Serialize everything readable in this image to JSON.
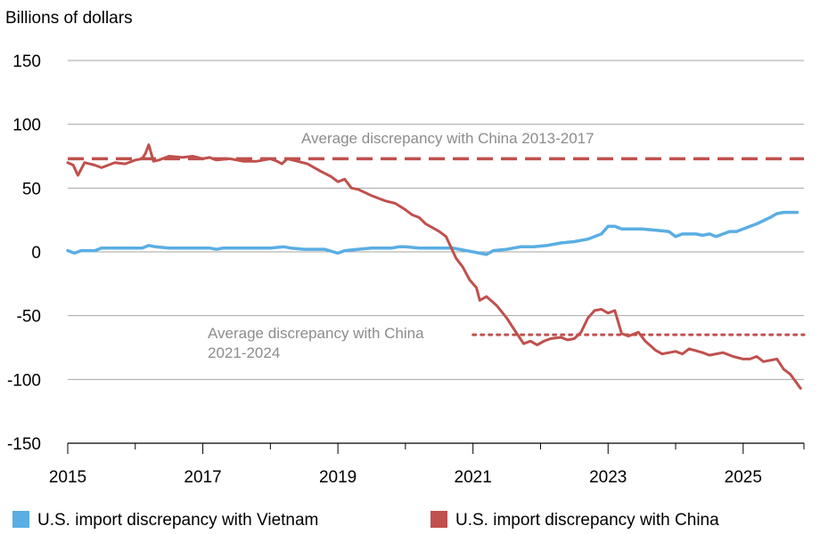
{
  "chart_data": {
    "type": "line",
    "ylabel": "Billions of dollars",
    "ylim": [
      -150,
      150
    ],
    "yticks": [
      150,
      100,
      50,
      0,
      -50,
      -100,
      -150
    ],
    "ytick_labels": [
      "150",
      "100",
      "50",
      "0",
      "-50",
      "-100",
      "-150"
    ],
    "xlim": [
      2015,
      2025.9
    ],
    "xticks": [
      2015,
      2017,
      2019,
      2021,
      2023,
      2025
    ],
    "xtick_labels": [
      "2015",
      "2017",
      "2019",
      "2021",
      "2023",
      "2025"
    ],
    "grid": "horizontal",
    "legend_position": "bottom",
    "series": [
      {
        "name": "U.S. import discrepancy with Vietnam",
        "color": "#5aaee3",
        "points": [
          [
            2015.0,
            1
          ],
          [
            2015.1,
            -1
          ],
          [
            2015.2,
            1
          ],
          [
            2015.4,
            1
          ],
          [
            2015.5,
            3
          ],
          [
            2015.8,
            3
          ],
          [
            2016.0,
            3
          ],
          [
            2016.1,
            3
          ],
          [
            2016.2,
            5
          ],
          [
            2016.3,
            4
          ],
          [
            2016.5,
            3
          ],
          [
            2016.8,
            3
          ],
          [
            2017.0,
            3
          ],
          [
            2017.1,
            3
          ],
          [
            2017.2,
            2
          ],
          [
            2017.3,
            3
          ],
          [
            2017.5,
            3
          ],
          [
            2017.8,
            3
          ],
          [
            2018.0,
            3
          ],
          [
            2018.2,
            4
          ],
          [
            2018.3,
            3
          ],
          [
            2018.5,
            2
          ],
          [
            2018.8,
            2
          ],
          [
            2019.0,
            -1
          ],
          [
            2019.1,
            1
          ],
          [
            2019.3,
            2
          ],
          [
            2019.5,
            3
          ],
          [
            2019.8,
            3
          ],
          [
            2019.9,
            4
          ],
          [
            2020.0,
            4
          ],
          [
            2020.2,
            3
          ],
          [
            2020.5,
            3
          ],
          [
            2020.7,
            3
          ],
          [
            2020.9,
            1
          ],
          [
            2021.0,
            0
          ],
          [
            2021.2,
            -2
          ],
          [
            2021.3,
            1
          ],
          [
            2021.5,
            2
          ],
          [
            2021.7,
            4
          ],
          [
            2021.9,
            4
          ],
          [
            2022.1,
            5
          ],
          [
            2022.3,
            7
          ],
          [
            2022.5,
            8
          ],
          [
            2022.7,
            10
          ],
          [
            2022.9,
            14
          ],
          [
            2023.0,
            20
          ],
          [
            2023.1,
            20
          ],
          [
            2023.2,
            18
          ],
          [
            2023.5,
            18
          ],
          [
            2023.7,
            17
          ],
          [
            2023.9,
            16
          ],
          [
            2024.0,
            12
          ],
          [
            2024.1,
            14
          ],
          [
            2024.3,
            14
          ],
          [
            2024.4,
            13
          ],
          [
            2024.5,
            14
          ],
          [
            2024.6,
            12
          ],
          [
            2024.8,
            16
          ],
          [
            2024.9,
            16
          ],
          [
            2025.0,
            18
          ],
          [
            2025.2,
            22
          ],
          [
            2025.4,
            27
          ],
          [
            2025.5,
            30
          ],
          [
            2025.6,
            31
          ],
          [
            2025.8,
            31
          ]
        ]
      },
      {
        "name": "U.S. import discrepancy with China",
        "color": "#c0504d",
        "points": [
          [
            2015.0,
            70
          ],
          [
            2015.08,
            68
          ],
          [
            2015.15,
            60
          ],
          [
            2015.25,
            70
          ],
          [
            2015.4,
            68
          ],
          [
            2015.5,
            66
          ],
          [
            2015.6,
            68
          ],
          [
            2015.7,
            70
          ],
          [
            2015.85,
            69
          ],
          [
            2016.0,
            72
          ],
          [
            2016.1,
            73
          ],
          [
            2016.15,
            77
          ],
          [
            2016.2,
            84
          ],
          [
            2016.27,
            71
          ],
          [
            2016.35,
            72
          ],
          [
            2016.5,
            75
          ],
          [
            2016.7,
            74
          ],
          [
            2016.85,
            75
          ],
          [
            2017.0,
            73
          ],
          [
            2017.1,
            74
          ],
          [
            2017.2,
            72
          ],
          [
            2017.4,
            73
          ],
          [
            2017.6,
            71
          ],
          [
            2017.8,
            71
          ],
          [
            2018.0,
            73
          ],
          [
            2018.1,
            71
          ],
          [
            2018.17,
            69
          ],
          [
            2018.25,
            73
          ],
          [
            2018.4,
            71
          ],
          [
            2018.55,
            69
          ],
          [
            2018.75,
            63
          ],
          [
            2018.9,
            59
          ],
          [
            2019.0,
            55
          ],
          [
            2019.1,
            57
          ],
          [
            2019.2,
            50
          ],
          [
            2019.3,
            49
          ],
          [
            2019.5,
            44
          ],
          [
            2019.7,
            40
          ],
          [
            2019.85,
            38
          ],
          [
            2020.0,
            33
          ],
          [
            2020.1,
            29
          ],
          [
            2020.2,
            27
          ],
          [
            2020.3,
            22
          ],
          [
            2020.5,
            16
          ],
          [
            2020.6,
            12
          ],
          [
            2020.75,
            -5
          ],
          [
            2020.85,
            -12
          ],
          [
            2020.95,
            -22
          ],
          [
            2021.05,
            -28
          ],
          [
            2021.1,
            -38
          ],
          [
            2021.2,
            -35
          ],
          [
            2021.35,
            -42
          ],
          [
            2021.5,
            -52
          ],
          [
            2021.6,
            -60
          ],
          [
            2021.7,
            -68
          ],
          [
            2021.75,
            -72
          ],
          [
            2021.85,
            -70
          ],
          [
            2021.95,
            -73
          ],
          [
            2022.05,
            -70
          ],
          [
            2022.15,
            -68
          ],
          [
            2022.3,
            -67
          ],
          [
            2022.4,
            -69
          ],
          [
            2022.5,
            -68
          ],
          [
            2022.6,
            -63
          ],
          [
            2022.7,
            -52
          ],
          [
            2022.8,
            -46
          ],
          [
            2022.9,
            -45
          ],
          [
            2023.0,
            -48
          ],
          [
            2023.1,
            -46
          ],
          [
            2023.2,
            -64
          ],
          [
            2023.3,
            -66
          ],
          [
            2023.45,
            -63
          ],
          [
            2023.55,
            -70
          ],
          [
            2023.7,
            -77
          ],
          [
            2023.8,
            -80
          ],
          [
            2024.0,
            -78
          ],
          [
            2024.1,
            -80
          ],
          [
            2024.2,
            -76
          ],
          [
            2024.4,
            -79
          ],
          [
            2024.5,
            -81
          ],
          [
            2024.7,
            -79
          ],
          [
            2024.85,
            -82
          ],
          [
            2025.0,
            -84
          ],
          [
            2025.1,
            -84
          ],
          [
            2025.2,
            -82
          ],
          [
            2025.3,
            -86
          ],
          [
            2025.5,
            -84
          ],
          [
            2025.6,
            -92
          ],
          [
            2025.7,
            -96
          ],
          [
            2025.85,
            -107
          ]
        ]
      }
    ],
    "reference_lines": [
      {
        "name": "Average discrepancy with China 2013-2017",
        "value": 73,
        "x_range": [
          2015,
          2025.9
        ],
        "style": "dashed",
        "color": "#c0504d"
      },
      {
        "name": "Average discrepancy with China 2021-2024",
        "value": -65,
        "x_range": [
          2021,
          2025.9
        ],
        "style": "dotted",
        "color": "#c0504d"
      }
    ],
    "annotations": [
      {
        "lines": [
          "Average discrepancy with China 2013-2017"
        ]
      },
      {
        "lines": [
          "Average discrepancy with China",
          "2021-2024"
        ]
      }
    ]
  }
}
